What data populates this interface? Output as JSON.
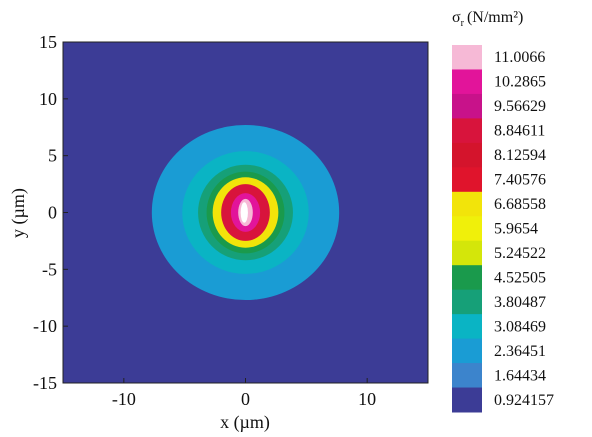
{
  "chart_data": {
    "type": "heatmap",
    "title": "",
    "xlabel": "x (µm)",
    "ylabel": "y (µm)",
    "xlim": [
      -15,
      15
    ],
    "ylim": [
      -15,
      15
    ],
    "x_ticks": [
      -10,
      0,
      10
    ],
    "x_tick_labels": [
      "-10",
      "0",
      "10"
    ],
    "y_ticks": [
      -15,
      -10,
      -5,
      0,
      5,
      10,
      15
    ],
    "y_tick_labels": [
      "-15",
      "-10",
      "-5",
      "0",
      "5",
      "10",
      "15"
    ],
    "grid": false,
    "colorbar": {
      "title_main": "σ",
      "title_sub": "r",
      "title_unit": "(N/mm²)",
      "position": "right",
      "levels": [
        "11.0066",
        "10.2865",
        "9.56629",
        "8.84611",
        "8.12594",
        "7.40576",
        "6.68558",
        "5.9654",
        "5.24522",
        "4.52505",
        "3.80487",
        "3.08469",
        "2.36451",
        "1.64434",
        "0.924157"
      ],
      "colors": [
        "#f6b9d6",
        "#e2149a",
        "#c8128a",
        "#d8143c",
        "#d4142c",
        "#e0142c",
        "#f2e40a",
        "#f0f00a",
        "#d4e60a",
        "#1a9a4c",
        "#16a078",
        "#0ab4c4",
        "#1a9cd4",
        "#3c84cc",
        "#3c3c96"
      ]
    },
    "contours": [
      {
        "center": [
          0,
          0
        ],
        "rx": 7.7,
        "ry": 7.7,
        "color": "#1a9cd4"
      },
      {
        "center": [
          0,
          0
        ],
        "rx": 5.2,
        "ry": 5.4,
        "color": "#0ab4c4"
      },
      {
        "center": [
          0,
          0
        ],
        "rx": 3.9,
        "ry": 4.2,
        "color": "#16a078"
      },
      {
        "center": [
          0,
          0
        ],
        "rx": 3.2,
        "ry": 3.6,
        "color": "#1a9a4c"
      },
      {
        "center": [
          0,
          0
        ],
        "rx": 2.7,
        "ry": 3.1,
        "color": "#f2e40a"
      },
      {
        "center": [
          0,
          0
        ],
        "rx": 2.0,
        "ry": 2.5,
        "color": "#d8143c"
      },
      {
        "center": [
          0,
          0
        ],
        "rx": 1.2,
        "ry": 1.7,
        "color": "#e2149a"
      },
      {
        "center": [
          0,
          0
        ],
        "rx": 0.6,
        "ry": 1.2,
        "color": "#f6b9d6"
      },
      {
        "center": [
          -0.1,
          0
        ],
        "rx": 0.3,
        "ry": 0.9,
        "color": "#ffffff"
      }
    ],
    "background_color": "#3c3c96"
  }
}
